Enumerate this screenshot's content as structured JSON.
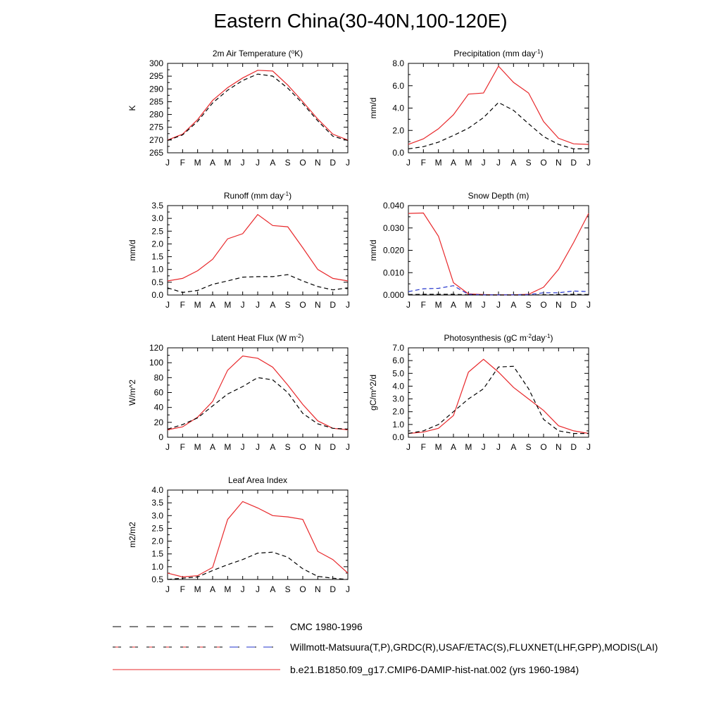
{
  "title": "Eastern China(30-40N,100-120E)",
  "months": [
    "J",
    "F",
    "M",
    "A",
    "M",
    "J",
    "J",
    "A",
    "S",
    "O",
    "N",
    "D",
    "J"
  ],
  "colors": {
    "model": "#e8282b",
    "obs": "#000000",
    "snow_obs": "#2233cc"
  },
  "legend": [
    {
      "label": "CMC 1980-1996",
      "style": "dash-black"
    },
    {
      "label": "Willmott-Matsuura(T,P),GRDC(R),USAF/ETAC(S),FLUXNET(LHF,GPP),MODIS(LAI)",
      "style": "dash-mixed"
    },
    {
      "label": "b.e21.B1850.f09_g17.CMIP6-DAMIP-hist-nat.002 (yrs 1960-1984)",
      "style": "solid-red"
    }
  ],
  "chart_data": [
    {
      "type": "line",
      "title": "2m Air Temperature (°K)",
      "title_parts": [
        [
          "2m Air Temperature (",
          "n"
        ],
        [
          "o",
          "sup"
        ],
        [
          "K)",
          "n"
        ]
      ],
      "ylabel": "K",
      "ylim": [
        265,
        300
      ],
      "yticks": [
        265,
        270,
        275,
        280,
        285,
        290,
        295,
        300
      ],
      "ytick_labels": [
        "265",
        "270",
        "275",
        "280",
        "285",
        "290",
        "295",
        "300"
      ],
      "series": [
        {
          "role": "model",
          "values": [
            270.0,
            272.3,
            278.0,
            285.5,
            290.5,
            294.3,
            297.3,
            297.0,
            291.5,
            285.0,
            278.2,
            272.3,
            270.0
          ]
        },
        {
          "role": "obs",
          "values": [
            269.8,
            272.0,
            277.3,
            284.5,
            289.5,
            293.3,
            295.8,
            295.0,
            290.3,
            284.3,
            277.5,
            271.5,
            269.8
          ]
        }
      ]
    },
    {
      "type": "line",
      "title": "Precipitation (mm day-1)",
      "title_parts": [
        [
          "Precipitation (mm day",
          "n"
        ],
        [
          "-1",
          "sup"
        ],
        [
          ")",
          "n"
        ]
      ],
      "ylabel": "mm/d",
      "ylim": [
        0,
        8
      ],
      "yticks": [
        0,
        2,
        4,
        6,
        8
      ],
      "ytick_labels": [
        "0.0",
        "2.0",
        "4.0",
        "6.0",
        "8.0"
      ],
      "series": [
        {
          "role": "model",
          "values": [
            0.75,
            1.25,
            2.15,
            3.4,
            5.25,
            5.35,
            7.75,
            6.3,
            5.35,
            2.8,
            1.3,
            0.8,
            0.75
          ]
        },
        {
          "role": "obs",
          "values": [
            0.35,
            0.55,
            0.95,
            1.55,
            2.2,
            3.15,
            4.5,
            3.8,
            2.6,
            1.45,
            0.75,
            0.35,
            0.35
          ]
        }
      ]
    },
    {
      "type": "line",
      "title": "Runoff (mm day-1)",
      "title_parts": [
        [
          "Runoff (mm day",
          "n"
        ],
        [
          "-1",
          "sup"
        ],
        [
          ")",
          "n"
        ]
      ],
      "ylabel": "mm/d",
      "ylim": [
        0,
        3.5
      ],
      "yticks": [
        0,
        0.5,
        1.0,
        1.5,
        2.0,
        2.5,
        3.0,
        3.5
      ],
      "ytick_labels": [
        "0.0",
        "0.5",
        "1.0",
        "1.5",
        "2.0",
        "2.5",
        "3.0",
        "3.5"
      ],
      "series": [
        {
          "role": "model",
          "values": [
            0.55,
            0.65,
            0.95,
            1.4,
            2.2,
            2.4,
            3.15,
            2.72,
            2.67,
            1.85,
            1.0,
            0.65,
            0.55
          ]
        },
        {
          "role": "obs",
          "values": [
            0.28,
            0.1,
            0.18,
            0.42,
            0.55,
            0.7,
            0.72,
            0.72,
            0.8,
            0.55,
            0.33,
            0.2,
            0.28
          ]
        }
      ]
    },
    {
      "type": "line",
      "title": "Snow Depth (m)",
      "title_parts": [
        [
          "Snow Depth (m)",
          "n"
        ]
      ],
      "ylabel": "mm/d",
      "ylim": [
        0,
        0.04
      ],
      "yticks": [
        0,
        0.01,
        0.02,
        0.03,
        0.04
      ],
      "ytick_labels": [
        "0.000",
        "0.010",
        "0.020",
        "0.030",
        "0.040"
      ],
      "series": [
        {
          "role": "model",
          "values": [
            0.0365,
            0.0367,
            0.0263,
            0.0055,
            0.0005,
            0.0002,
            0.0001,
            0.0001,
            0.0003,
            0.0035,
            0.0115,
            0.0235,
            0.0365
          ]
        },
        {
          "role": "snow_obs",
          "values": [
            0.0015,
            0.0028,
            0.003,
            0.0042,
            0.0003,
            0.0001,
            0.0001,
            0.0001,
            0.0002,
            0.001,
            0.001,
            0.0018,
            0.0015
          ]
        },
        {
          "role": "obs",
          "values": [
            0.0002,
            0.0003,
            0.0003,
            0.0003,
            0.0001,
            0.0,
            0.0,
            0.0,
            0.0,
            0.0001,
            0.0002,
            0.0003,
            0.0002
          ]
        }
      ]
    },
    {
      "type": "line",
      "title": "Latent Heat Flux (W m-2)",
      "title_parts": [
        [
          "Latent Heat Flux (W m",
          "n"
        ],
        [
          "-2",
          "sup"
        ],
        [
          ")",
          "n"
        ]
      ],
      "ylabel": "W/m^2",
      "ylim": [
        0,
        120
      ],
      "yticks": [
        0,
        20,
        40,
        60,
        80,
        100,
        120
      ],
      "ytick_labels": [
        "0",
        "20",
        "40",
        "60",
        "80",
        "100",
        "120"
      ],
      "series": [
        {
          "role": "model",
          "values": [
            10,
            14,
            27,
            48,
            90,
            109,
            106,
            94,
            70,
            44,
            22,
            12,
            10
          ]
        },
        {
          "role": "obs",
          "values": [
            11,
            17,
            26,
            42,
            58,
            68,
            80,
            77,
            60,
            32,
            18,
            12,
            11
          ]
        }
      ]
    },
    {
      "type": "line",
      "title": "Photosynthesis (gC m-2day-1)",
      "title_parts": [
        [
          "Photosynthesis (gC m",
          "n"
        ],
        [
          "-2",
          "sup"
        ],
        [
          "day",
          "n"
        ],
        [
          "-1",
          "sup"
        ],
        [
          ")",
          "n"
        ]
      ],
      "ylabel": "gC/m^2/d",
      "ylim": [
        0,
        7
      ],
      "yticks": [
        0,
        1,
        2,
        3,
        4,
        5,
        6,
        7
      ],
      "ytick_labels": [
        "0.0",
        "1.0",
        "2.0",
        "3.0",
        "4.0",
        "5.0",
        "6.0",
        "7.0"
      ],
      "series": [
        {
          "role": "model",
          "values": [
            0.3,
            0.4,
            0.7,
            1.7,
            5.1,
            6.1,
            5.1,
            3.9,
            3.0,
            2.1,
            0.9,
            0.5,
            0.3
          ]
        },
        {
          "role": "obs",
          "values": [
            0.3,
            0.5,
            1.0,
            2.0,
            3.0,
            3.8,
            5.5,
            5.55,
            3.8,
            1.4,
            0.5,
            0.3,
            0.3
          ]
        }
      ]
    },
    {
      "type": "line",
      "title": "Leaf Area Index",
      "title_parts": [
        [
          "Leaf Area Index",
          "n"
        ]
      ],
      "ylabel": "m2/m2",
      "ylim": [
        0.5,
        4.0
      ],
      "yticks": [
        0.5,
        1.0,
        1.5,
        2.0,
        2.5,
        3.0,
        3.5,
        4.0
      ],
      "ytick_labels": [
        "0.5",
        "1.0",
        "1.5",
        "2.0",
        "2.5",
        "3.0",
        "3.5",
        "4.0"
      ],
      "series": [
        {
          "role": "model",
          "values": [
            0.75,
            0.6,
            0.65,
            0.97,
            2.85,
            3.55,
            3.3,
            3.0,
            2.95,
            2.85,
            1.6,
            1.28,
            0.75
          ]
        },
        {
          "role": "obs",
          "values": [
            0.5,
            0.55,
            0.6,
            0.85,
            1.08,
            1.28,
            1.53,
            1.57,
            1.37,
            0.92,
            0.62,
            0.55,
            0.5
          ]
        }
      ]
    }
  ]
}
